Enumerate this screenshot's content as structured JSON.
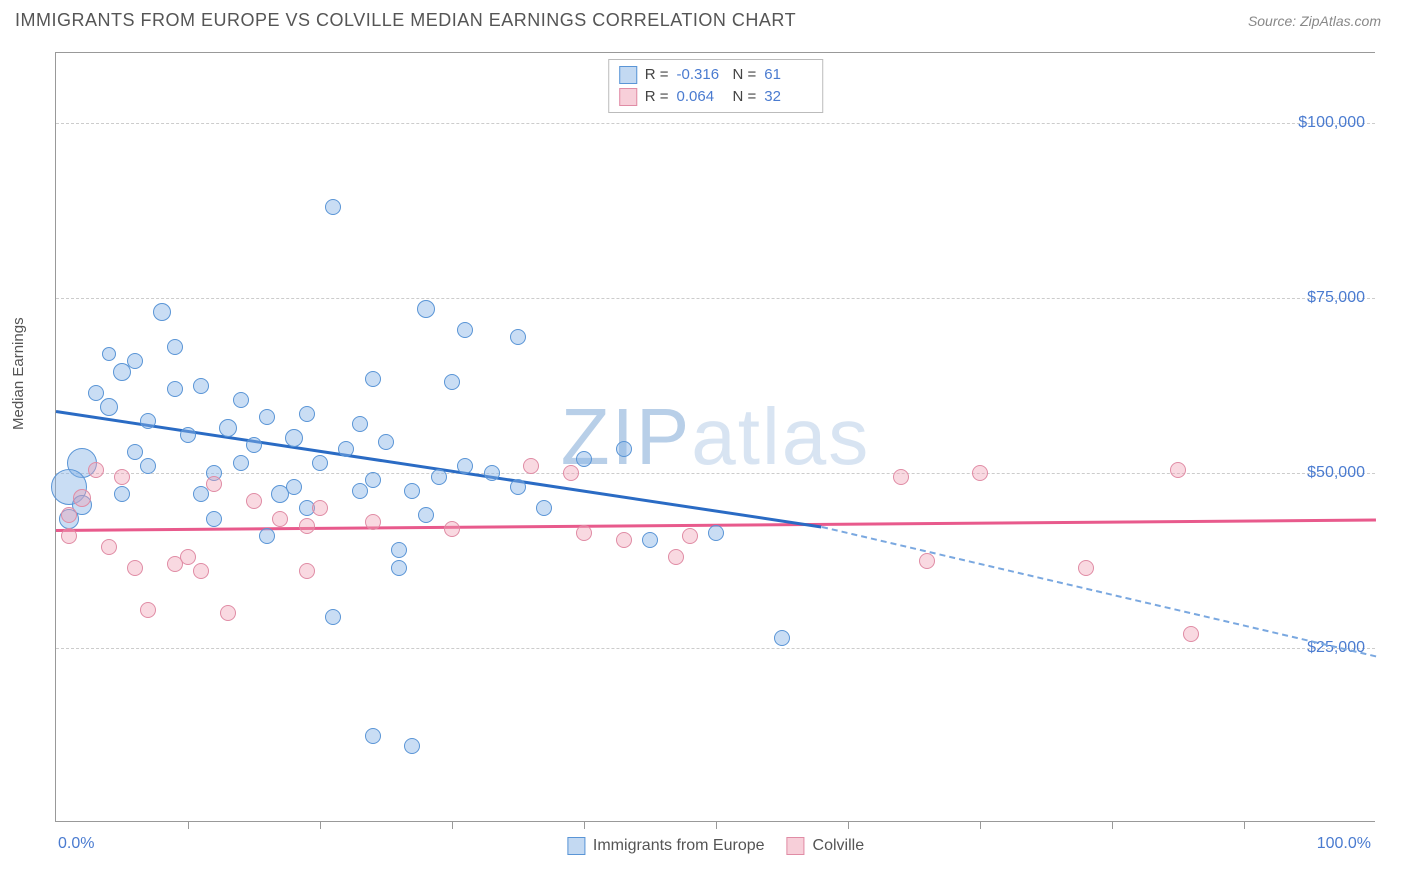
{
  "header": {
    "title": "IMMIGRANTS FROM EUROPE VS COLVILLE MEDIAN EARNINGS CORRELATION CHART",
    "source": "Source: ZipAtlas.com"
  },
  "watermark": {
    "part1": "ZIP",
    "part2": "atlas"
  },
  "chart": {
    "type": "scatter",
    "ylabel": "Median Earnings",
    "xlim": [
      0,
      100
    ],
    "ylim": [
      0,
      110000
    ],
    "y_ticks": [
      25000,
      50000,
      75000,
      100000
    ],
    "y_tick_labels": [
      "$25,000",
      "$50,000",
      "$75,000",
      "$100,000"
    ],
    "x_end_labels": [
      "0.0%",
      "100.0%"
    ],
    "x_minor_ticks": [
      10,
      20,
      30,
      40,
      50,
      60,
      70,
      80,
      90
    ],
    "grid_color": "#cccccc",
    "axis_color": "#999999",
    "tick_label_color": "#4a7bd0",
    "background_color": "#ffffff",
    "series": [
      {
        "key": "europe",
        "label": "Immigrants from Europe",
        "color_fill": "rgba(135,180,230,0.45)",
        "color_stroke": "#5a95d6",
        "R": "-0.316",
        "N": "61",
        "trend": {
          "x1": 0,
          "y1": 59000,
          "x2_solid": 58,
          "y2_solid": 42500,
          "x2": 100,
          "y2": 24000,
          "color": "#2a6bc4"
        },
        "points": [
          {
            "x": 21,
            "y": 88000,
            "r": 8
          },
          {
            "x": 28,
            "y": 73500,
            "r": 9
          },
          {
            "x": 31,
            "y": 70500,
            "r": 8
          },
          {
            "x": 35,
            "y": 69500,
            "r": 8
          },
          {
            "x": 8,
            "y": 73000,
            "r": 9
          },
          {
            "x": 6,
            "y": 66000,
            "r": 8
          },
          {
            "x": 5,
            "y": 64500,
            "r": 9
          },
          {
            "x": 3,
            "y": 61500,
            "r": 8
          },
          {
            "x": 4,
            "y": 59500,
            "r": 9
          },
          {
            "x": 9,
            "y": 62000,
            "r": 8
          },
          {
            "x": 11,
            "y": 62500,
            "r": 8
          },
          {
            "x": 7,
            "y": 57500,
            "r": 8
          },
          {
            "x": 10,
            "y": 55500,
            "r": 8
          },
          {
            "x": 13,
            "y": 56500,
            "r": 9
          },
          {
            "x": 14,
            "y": 60500,
            "r": 8
          },
          {
            "x": 15,
            "y": 54000,
            "r": 8
          },
          {
            "x": 16,
            "y": 58000,
            "r": 8
          },
          {
            "x": 18,
            "y": 55000,
            "r": 9
          },
          {
            "x": 17,
            "y": 47000,
            "r": 9
          },
          {
            "x": 18,
            "y": 48000,
            "r": 8
          },
          {
            "x": 22,
            "y": 53500,
            "r": 8
          },
          {
            "x": 20,
            "y": 51500,
            "r": 8
          },
          {
            "x": 19,
            "y": 45000,
            "r": 8
          },
          {
            "x": 23,
            "y": 57000,
            "r": 8
          },
          {
            "x": 24,
            "y": 63500,
            "r": 8
          },
          {
            "x": 25,
            "y": 54500,
            "r": 8
          },
          {
            "x": 23,
            "y": 47500,
            "r": 8
          },
          {
            "x": 24,
            "y": 49000,
            "r": 8
          },
          {
            "x": 27,
            "y": 47500,
            "r": 8
          },
          {
            "x": 26,
            "y": 39000,
            "r": 8
          },
          {
            "x": 28,
            "y": 44000,
            "r": 8
          },
          {
            "x": 30,
            "y": 63000,
            "r": 8
          },
          {
            "x": 31,
            "y": 51000,
            "r": 8
          },
          {
            "x": 33,
            "y": 50000,
            "r": 8
          },
          {
            "x": 35,
            "y": 48000,
            "r": 8
          },
          {
            "x": 40,
            "y": 52000,
            "r": 8
          },
          {
            "x": 43,
            "y": 53500,
            "r": 8
          },
          {
            "x": 45,
            "y": 40500,
            "r": 8
          },
          {
            "x": 50,
            "y": 41500,
            "r": 8
          },
          {
            "x": 55,
            "y": 26500,
            "r": 8
          },
          {
            "x": 2,
            "y": 51500,
            "r": 15
          },
          {
            "x": 1,
            "y": 48000,
            "r": 18
          },
          {
            "x": 2,
            "y": 45500,
            "r": 10
          },
          {
            "x": 1,
            "y": 43500,
            "r": 10
          },
          {
            "x": 5,
            "y": 47000,
            "r": 8
          },
          {
            "x": 7,
            "y": 51000,
            "r": 8
          },
          {
            "x": 12,
            "y": 50000,
            "r": 8
          },
          {
            "x": 12,
            "y": 43500,
            "r": 8
          },
          {
            "x": 21,
            "y": 29500,
            "r": 8
          },
          {
            "x": 16,
            "y": 41000,
            "r": 8
          },
          {
            "x": 26,
            "y": 36500,
            "r": 8
          },
          {
            "x": 27,
            "y": 11000,
            "r": 8
          },
          {
            "x": 24,
            "y": 12500,
            "r": 8
          },
          {
            "x": 9,
            "y": 68000,
            "r": 8
          },
          {
            "x": 4,
            "y": 67000,
            "r": 7
          },
          {
            "x": 6,
            "y": 53000,
            "r": 8
          },
          {
            "x": 11,
            "y": 47000,
            "r": 8
          },
          {
            "x": 14,
            "y": 51500,
            "r": 8
          },
          {
            "x": 19,
            "y": 58500,
            "r": 8
          },
          {
            "x": 29,
            "y": 49500,
            "r": 8
          },
          {
            "x": 37,
            "y": 45000,
            "r": 8
          }
        ]
      },
      {
        "key": "colville",
        "label": "Colville",
        "color_fill": "rgba(240,160,180,0.4)",
        "color_stroke": "#e08ca5",
        "R": "0.064",
        "N": "32",
        "trend": {
          "x1": 0,
          "y1": 42000,
          "x2_solid": 100,
          "y2_solid": 43500,
          "x2": 100,
          "y2": 43500,
          "color": "#e85a8c"
        },
        "points": [
          {
            "x": 3,
            "y": 50500,
            "r": 8
          },
          {
            "x": 5,
            "y": 49500,
            "r": 8
          },
          {
            "x": 2,
            "y": 46500,
            "r": 9
          },
          {
            "x": 1,
            "y": 41000,
            "r": 8
          },
          {
            "x": 4,
            "y": 39500,
            "r": 8
          },
          {
            "x": 6,
            "y": 36500,
            "r": 8
          },
          {
            "x": 7,
            "y": 30500,
            "r": 8
          },
          {
            "x": 9,
            "y": 37000,
            "r": 8
          },
          {
            "x": 10,
            "y": 38000,
            "r": 8
          },
          {
            "x": 11,
            "y": 36000,
            "r": 8
          },
          {
            "x": 12,
            "y": 48500,
            "r": 8
          },
          {
            "x": 13,
            "y": 30000,
            "r": 8
          },
          {
            "x": 15,
            "y": 46000,
            "r": 8
          },
          {
            "x": 17,
            "y": 43500,
            "r": 8
          },
          {
            "x": 19,
            "y": 42500,
            "r": 8
          },
          {
            "x": 19,
            "y": 36000,
            "r": 8
          },
          {
            "x": 20,
            "y": 45000,
            "r": 8
          },
          {
            "x": 24,
            "y": 43000,
            "r": 8
          },
          {
            "x": 30,
            "y": 42000,
            "r": 8
          },
          {
            "x": 36,
            "y": 51000,
            "r": 8
          },
          {
            "x": 39,
            "y": 50000,
            "r": 8
          },
          {
            "x": 40,
            "y": 41500,
            "r": 8
          },
          {
            "x": 43,
            "y": 40500,
            "r": 8
          },
          {
            "x": 47,
            "y": 38000,
            "r": 8
          },
          {
            "x": 48,
            "y": 41000,
            "r": 8
          },
          {
            "x": 64,
            "y": 49500,
            "r": 8
          },
          {
            "x": 66,
            "y": 37500,
            "r": 8
          },
          {
            "x": 70,
            "y": 50000,
            "r": 8
          },
          {
            "x": 78,
            "y": 36500,
            "r": 8
          },
          {
            "x": 85,
            "y": 50500,
            "r": 8
          },
          {
            "x": 86,
            "y": 27000,
            "r": 8
          },
          {
            "x": 1,
            "y": 44000,
            "r": 8
          }
        ]
      }
    ]
  }
}
